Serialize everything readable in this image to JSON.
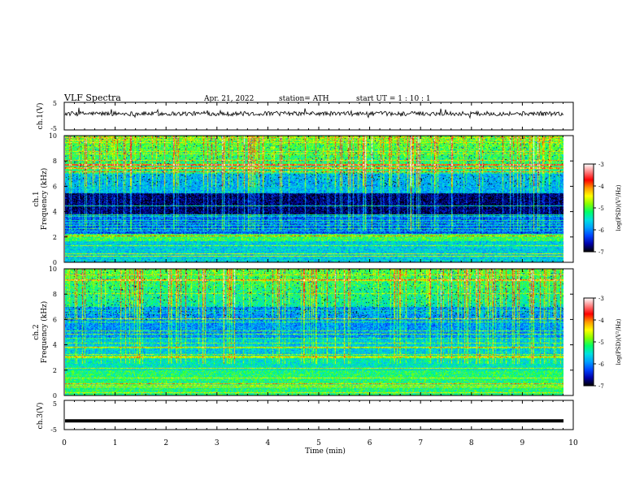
{
  "header": {
    "title": "VLF  Spectra",
    "date": "Apr. 21, 2022",
    "station": "station= ATH",
    "start": "start  UT  =   1  : 10 : 1"
  },
  "chart_data": [
    {
      "type": "line",
      "panel": "ch1-waveform",
      "ylabel": "ch.1(V)",
      "ylim": [
        -5,
        5
      ],
      "yticks": [
        "5",
        "-5"
      ],
      "xlim": [
        0,
        10
      ],
      "series": [
        {
          "values_hint": "noisy signal around +1 V with occasional spikes"
        }
      ]
    },
    {
      "type": "heatmap",
      "panel": "ch1-spectrogram",
      "ylabel": "ch.1\nFrequency  (kHz)",
      "ylim": [
        0,
        10
      ],
      "yticks": [
        "0",
        "2",
        "4",
        "6",
        "8",
        "10"
      ],
      "xlim": [
        0,
        10
      ],
      "colorbar": {
        "label": "log(PSD)(V²/Hz)",
        "range": [
          -7,
          -3
        ],
        "ticks": [
          "-3",
          "-4",
          "-5",
          "-6",
          "-7"
        ]
      }
    },
    {
      "type": "heatmap",
      "panel": "ch2-spectrogram",
      "ylabel": "ch.2\nFrequency  (kHz)",
      "ylim": [
        0,
        10
      ],
      "yticks": [
        "0",
        "2",
        "4",
        "6",
        "8",
        "10"
      ],
      "xlim": [
        0,
        10
      ],
      "colorbar": {
        "label": "log(PSD)(V²/Hz)",
        "range": [
          -7,
          -3
        ],
        "ticks": [
          "-3",
          "-4",
          "-5",
          "-6",
          "-7"
        ]
      }
    },
    {
      "type": "line",
      "panel": "ch3-waveform",
      "ylabel": "ch.3(V)",
      "ylim": [
        -5,
        5
      ],
      "yticks": [
        "5",
        "-5"
      ],
      "xlim": [
        0,
        10
      ],
      "xlabel": "Time  (min)",
      "xticks": [
        "0",
        "1",
        "2",
        "3",
        "4",
        "5",
        "6",
        "7",
        "8",
        "9",
        "10"
      ],
      "series": [
        {
          "constant_value": -2
        }
      ]
    }
  ],
  "labels": {
    "ch1_wave": "ch.1(V)",
    "ch1_spec_a": "ch.1",
    "ch1_spec_b": "Frequency  (kHz)",
    "ch2_spec_a": "ch.2",
    "ch2_spec_b": "Frequency  (kHz)",
    "ch3_wave": "ch.3(V)",
    "xlabel": "Time  (min)",
    "cbar": "log(PSD)(V²/Hz)"
  },
  "colors": {
    "colormap": [
      "#000000",
      "#0000aa",
      "#0044ff",
      "#00a0ff",
      "#00e0e0",
      "#00ff66",
      "#88ff00",
      "#ffff00",
      "#ff9900",
      "#ff0000",
      "#ff8080",
      "#ffffff"
    ]
  }
}
